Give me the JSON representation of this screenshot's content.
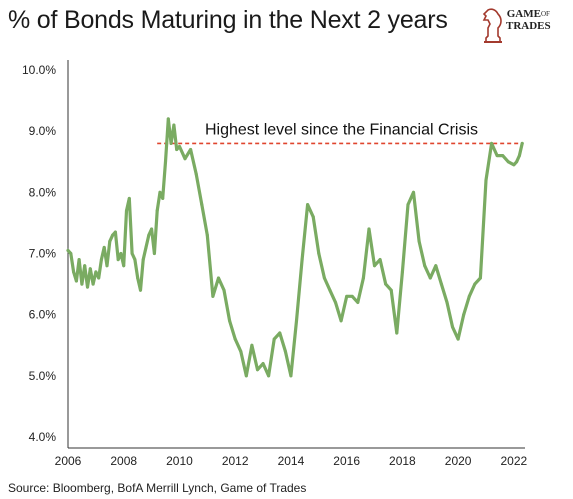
{
  "header": {
    "title": "% of Bonds Maturing in the Next 2 years"
  },
  "logo": {
    "line1": "GAME",
    "of": "OF",
    "line2": "TRADES",
    "icon": "knight-chess-piece-icon"
  },
  "source": "Source: Bloomberg, BofA Merrill Lynch, Game of Trades",
  "chart_data": {
    "type": "line",
    "title": "% of Bonds Maturing in the Next 2 years",
    "xlabel": "",
    "ylabel": "",
    "xlim": [
      2006,
      2022.4
    ],
    "ylim": [
      4.0,
      10.0
    ],
    "x_ticks": [
      "2006",
      "2008",
      "2010",
      "2012",
      "2014",
      "2016",
      "2018",
      "2020",
      "2022"
    ],
    "y_ticks": [
      "4.0%",
      "5.0%",
      "6.0%",
      "7.0%",
      "8.0%",
      "9.0%",
      "10.0%"
    ],
    "grid": false,
    "line_color": "#7aab62",
    "annotation": {
      "text": "Highest level since the Financial Crisis",
      "y": 8.8,
      "x_start": 2009.2,
      "x_end": 2022.3,
      "color": "#e0452e"
    },
    "series": [
      {
        "x": [
          2006.0,
          2006.1,
          2006.2,
          2006.3,
          2006.4,
          2006.5,
          2006.6,
          2006.7,
          2006.8,
          2006.9,
          2007.0,
          2007.1,
          2007.2,
          2007.3,
          2007.4,
          2007.5,
          2007.6,
          2007.7,
          2007.8,
          2007.9,
          2008.0,
          2008.1,
          2008.2,
          2008.3,
          2008.4,
          2008.5,
          2008.6,
          2008.7,
          2008.8,
          2008.9,
          2009.0,
          2009.1,
          2009.2,
          2009.3,
          2009.4,
          2009.5,
          2009.6,
          2009.7,
          2009.8,
          2009.9,
          2010.0,
          2010.2,
          2010.4,
          2010.6,
          2010.8,
          2011.0,
          2011.2,
          2011.4,
          2011.6,
          2011.8,
          2012.0,
          2012.2,
          2012.4,
          2012.6,
          2012.8,
          2013.0,
          2013.2,
          2013.4,
          2013.6,
          2013.8,
          2014.0,
          2014.2,
          2014.4,
          2014.6,
          2014.8,
          2015.0,
          2015.2,
          2015.4,
          2015.6,
          2015.8,
          2016.0,
          2016.2,
          2016.4,
          2016.6,
          2016.8,
          2017.0,
          2017.2,
          2017.4,
          2017.6,
          2017.8,
          2018.0,
          2018.2,
          2018.4,
          2018.6,
          2018.8,
          2019.0,
          2019.2,
          2019.4,
          2019.6,
          2019.8,
          2020.0,
          2020.2,
          2020.4,
          2020.6,
          2020.8,
          2021.0,
          2021.2,
          2021.4,
          2021.6,
          2021.8,
          2022.0,
          2022.1,
          2022.2,
          2022.3
        ],
        "y": [
          7.05,
          7.0,
          6.7,
          6.55,
          6.9,
          6.5,
          6.8,
          6.45,
          6.75,
          6.5,
          6.7,
          6.6,
          6.9,
          7.1,
          6.8,
          7.2,
          7.3,
          7.35,
          6.9,
          7.0,
          6.8,
          7.7,
          7.9,
          7.0,
          6.9,
          6.6,
          6.4,
          6.9,
          7.1,
          7.3,
          7.4,
          7.0,
          7.7,
          8.0,
          7.9,
          8.5,
          9.2,
          8.8,
          9.1,
          8.7,
          8.75,
          8.55,
          8.7,
          8.3,
          7.8,
          7.3,
          6.3,
          6.6,
          6.4,
          5.9,
          5.6,
          5.4,
          5.0,
          5.5,
          5.1,
          5.2,
          5.0,
          5.6,
          5.7,
          5.4,
          5.0,
          5.9,
          6.9,
          7.8,
          7.6,
          7.0,
          6.6,
          6.4,
          6.2,
          5.9,
          6.3,
          6.3,
          6.2,
          6.6,
          7.4,
          6.8,
          6.9,
          6.5,
          6.4,
          5.7,
          6.7,
          7.8,
          8.0,
          7.2,
          6.8,
          6.6,
          6.8,
          6.5,
          6.2,
          5.8,
          5.6,
          6.0,
          6.3,
          6.5,
          6.6,
          8.2,
          8.8,
          8.6,
          8.6,
          8.5,
          8.45,
          8.5,
          8.6,
          8.8
        ]
      }
    ]
  }
}
